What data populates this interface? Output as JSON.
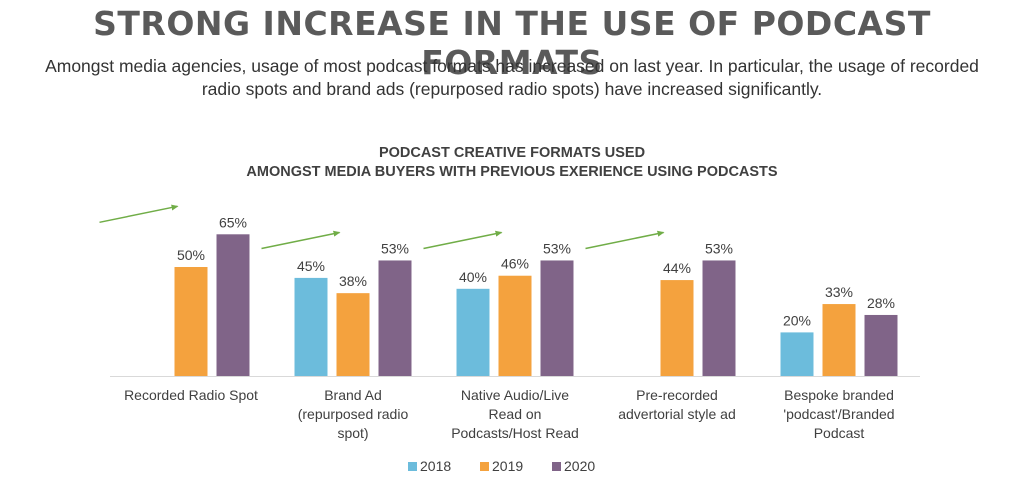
{
  "page": {
    "headline": "STRONG INCREASE IN THE USE OF PODCAST FORMATS",
    "subtitle": "Amongst media agencies, usage of most podcast formats has increased on last year. In particular, the usage of recorded radio spots and brand ads (repurposed radio spots) have increased significantly."
  },
  "chart_data": {
    "type": "bar",
    "title": "PODCAST CREATIVE FORMATS USED\nAMONGST MEDIA BUYERS WITH PREVIOUS EXERIENCE USING PODCASTS",
    "categories": [
      "Recorded Radio Spot",
      "Brand Ad (repurposed radio spot)",
      "Native Audio/Live Read on Podcasts/Host Read",
      "Pre-recorded advertorial style ad",
      "Bespoke branded 'podcast'/Branded Podcast"
    ],
    "category_label_lines": [
      [
        "Recorded Radio Spot"
      ],
      [
        "Brand Ad",
        "(repurposed radio",
        "spot)"
      ],
      [
        "Native Audio/Live",
        "Read on",
        "Podcasts/Host Read"
      ],
      [
        "Pre-recorded",
        "advertorial style ad"
      ],
      [
        "Bespoke branded",
        "'podcast'/Branded",
        "Podcast"
      ]
    ],
    "series": [
      {
        "name": "2018",
        "color": "#6cbcdc",
        "values": [
          null,
          45,
          40,
          null,
          20
        ],
        "labels": [
          "",
          "45%",
          "40%",
          "",
          "20%"
        ]
      },
      {
        "name": "2019",
        "color": "#f4a23e",
        "values": [
          50,
          38,
          46,
          44,
          33
        ],
        "labels": [
          "50%",
          "38%",
          "46%",
          "44%",
          "33%"
        ]
      },
      {
        "name": "2020",
        "color": "#806488",
        "values": [
          65,
          53,
          53,
          53,
          28
        ],
        "labels": [
          "65%",
          "53%",
          "53%",
          "53%",
          "28%"
        ]
      }
    ],
    "trend_arrows": [
      true,
      true,
      true,
      true,
      false
    ],
    "arrow_color": "#70ad47",
    "value_suffix": "%",
    "ylim": [
      0,
      80
    ],
    "xlabel": "",
    "ylabel": "",
    "grid": false,
    "legend_position": "bottom-center"
  }
}
